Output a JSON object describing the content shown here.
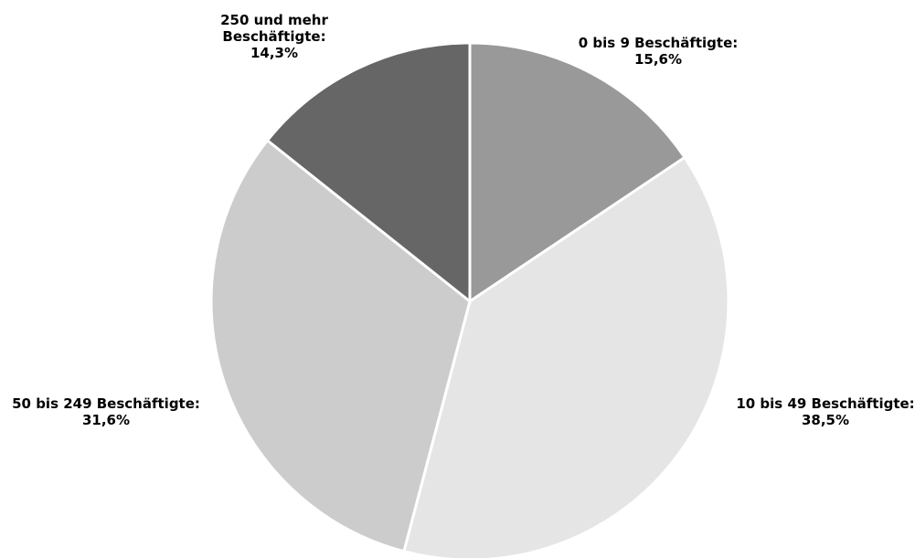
{
  "chart_data": {
    "type": "pie",
    "title": "",
    "start_angle_deg": 0,
    "direction": "clockwise",
    "legend": "none",
    "slices": [
      {
        "label_lines": [
          "0 bis 9 Beschäftigte:"
        ],
        "value_text": "15,6%",
        "value": 15.6,
        "color": "#999999"
      },
      {
        "label_lines": [
          "10 bis 49 Beschäftigte:"
        ],
        "value_text": "38,5%",
        "value": 38.5,
        "color": "#e5e5e5"
      },
      {
        "label_lines": [
          "50 bis 249 Beschäftigte:"
        ],
        "value_text": "31,6%",
        "value": 31.6,
        "color": "#cccccc"
      },
      {
        "label_lines": [
          "250 und mehr",
          "Beschäftigte:"
        ],
        "value_text": "14,3%",
        "value": 14.3,
        "color": "#666666"
      }
    ]
  }
}
